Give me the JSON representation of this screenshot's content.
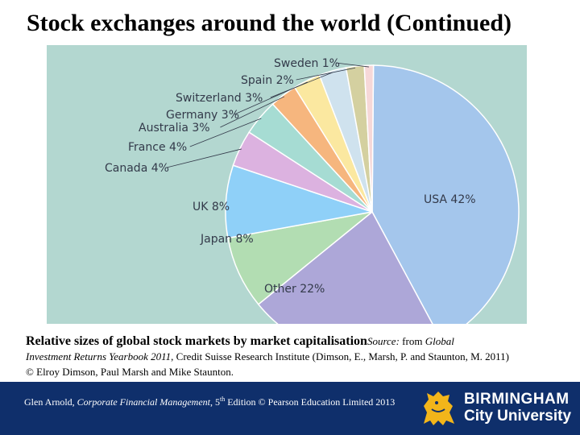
{
  "title": "Stock exchanges around the world (Continued)",
  "chart_data": {
    "type": "pie",
    "title": "",
    "slices": [
      {
        "label": "USA 42%",
        "value": 42,
        "color": "#a4c6ec"
      },
      {
        "label": "Other 22%",
        "value": 22,
        "color": "#ada7d8"
      },
      {
        "label": "Japan 8%",
        "value": 8,
        "color": "#b2ddb2"
      },
      {
        "label": "UK 8%",
        "value": 8,
        "color": "#8fd0f8"
      },
      {
        "label": "Canada 4%",
        "value": 4,
        "color": "#dcb2e0"
      },
      {
        "label": "France 4%",
        "value": 4,
        "color": "#a6dcd3"
      },
      {
        "label": "Australia 3%",
        "value": 3,
        "color": "#f6b67e"
      },
      {
        "label": "Germany 3%",
        "value": 3,
        "color": "#fbe8a0"
      },
      {
        "label": "Switzerland 3%",
        "value": 3,
        "color": "#cfe2ee"
      },
      {
        "label": "Spain 2%",
        "value": 2,
        "color": "#d4d0a0"
      },
      {
        "label": "Sweden 1%",
        "value": 1,
        "color": "#f6d8d8"
      }
    ],
    "background": "#b3d7d0"
  },
  "caption": {
    "bold": "Relative sizes of global stock markets by market capitalisation",
    "source_italic": "Source:",
    "from_text": " from ",
    "book_italic_1": "Global",
    "book_italic_2": "Investment Returns Yearbook 2011",
    "rest_line2": ", Credit Suisse Research Institute (Dimson, E., Marsh, P. and Staunton, M. 2011)",
    "line3": "© Elroy Dimson, Paul Marsh and Mike Staunton."
  },
  "footer": {
    "author": "Glen Arnold, ",
    "book": "Corporate Financial Management",
    "edition_num": ", 5",
    "edition_sup": "th",
    "rest": " Edition © Pearson Education Limited 2013",
    "logo_line1": "BIRMINGHAM",
    "logo_line2": "City University",
    "bg_color": "#0f2f6b"
  }
}
